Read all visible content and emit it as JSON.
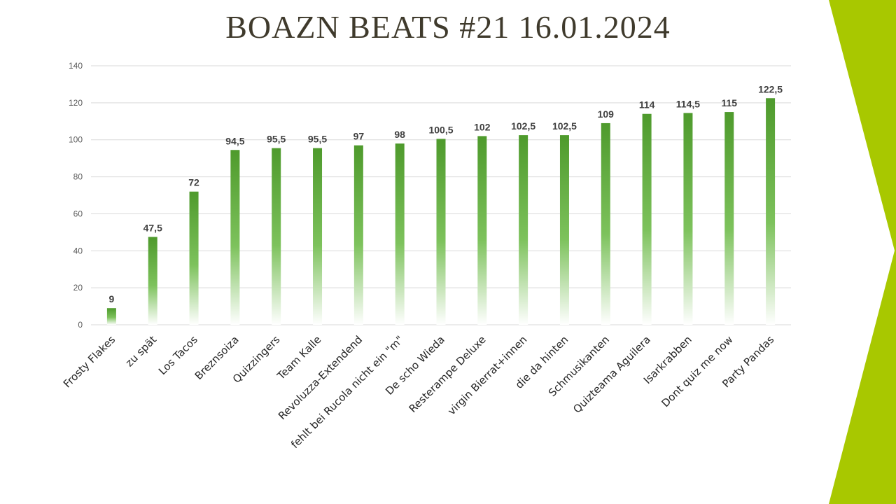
{
  "slide": {
    "title": "BOAZN BEATS #21 16.01.2024",
    "accent_color": "#a8c800"
  },
  "chart_data": {
    "type": "bar",
    "title": "BOAZN BEATS #21 16.01.2024",
    "xlabel": "",
    "ylabel": "",
    "ylim": [
      0,
      140
    ],
    "yticks": [
      0,
      20,
      40,
      60,
      80,
      100,
      120,
      140
    ],
    "grid": true,
    "categories": [
      "Frosty Flakes",
      "zu spät",
      "Los Tacos",
      "Breznsoiza",
      "Quizzingers",
      "Team Kalle",
      "Revoluzza-Extendend",
      "fehlt bei Rucola nicht ein \"m\"",
      "De scho Wieda",
      "Resterampe Deluxe",
      "virgin Bierrat+innen",
      "die da hinten",
      "Schmusikanten",
      "Quizteama Aguilera",
      "Isarkrabben",
      "Dont quiz me now",
      "Party Pandas"
    ],
    "values": [
      9,
      47.5,
      72,
      94.5,
      95.5,
      95.5,
      97,
      98,
      100.5,
      102,
      102.5,
      102.5,
      109,
      114,
      114.5,
      115,
      122.5
    ],
    "value_labels": [
      "9",
      "47,5",
      "72",
      "94,5",
      "95,5",
      "95,5",
      "97",
      "98",
      "100,5",
      "102",
      "102,5",
      "102,5",
      "109",
      "114",
      "114,5",
      "115",
      "122,5"
    ],
    "bar_color": "#4e9a2c"
  }
}
